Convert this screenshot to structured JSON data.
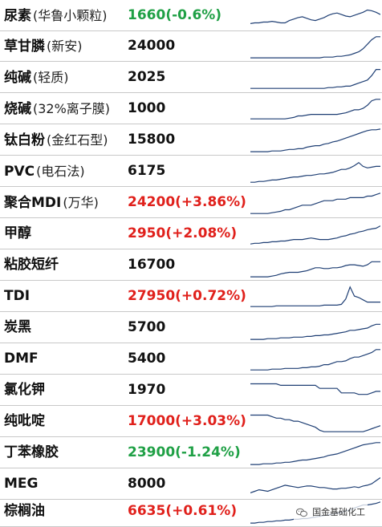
{
  "colors": {
    "up": "#e0201b",
    "down": "#1fa045",
    "neutral": "#111111",
    "spark": "#1f3f74"
  },
  "watermark": {
    "icon": "wechat-icon",
    "text": "国金基础化工"
  },
  "rows": [
    {
      "name": "尿素",
      "sub": "(华鲁小颗粒)",
      "price": "1660",
      "change": "(-0.6%)",
      "trend": "down",
      "spark": [
        7,
        8,
        8,
        9,
        9,
        10,
        9,
        8,
        8,
        11,
        13,
        15,
        16,
        14,
        12,
        11,
        13,
        15,
        18,
        20,
        21,
        19,
        17,
        16,
        18,
        20,
        22,
        25,
        24,
        22,
        19
      ]
    },
    {
      "name": "草甘膦",
      "sub": "(新安)",
      "price": "24000",
      "change": "",
      "trend": "flat",
      "spark": [
        2,
        2,
        2,
        2,
        2,
        2,
        2,
        2,
        2,
        2,
        2,
        2,
        2,
        2,
        2,
        2,
        2,
        3,
        3,
        3,
        4,
        4,
        5,
        6,
        8,
        10,
        14,
        20,
        26,
        30,
        30
      ]
    },
    {
      "name": "纯碱",
      "sub": "(轻质)",
      "price": "2025",
      "change": "",
      "trend": "flat",
      "spark": [
        3,
        3,
        3,
        3,
        3,
        3,
        3,
        3,
        3,
        3,
        3,
        3,
        3,
        3,
        3,
        3,
        3,
        3,
        4,
        4,
        5,
        5,
        6,
        6,
        8,
        10,
        12,
        14,
        20,
        28,
        28
      ]
    },
    {
      "name": "烧碱",
      "sub": "(32%离子膜)",
      "price": "1000",
      "change": "",
      "trend": "flat",
      "spark": [
        4,
        4,
        4,
        4,
        4,
        4,
        4,
        4,
        4,
        5,
        6,
        8,
        8,
        9,
        10,
        10,
        10,
        10,
        10,
        10,
        10,
        11,
        12,
        14,
        16,
        16,
        18,
        22,
        28,
        30,
        30
      ]
    },
    {
      "name": "钛白粉",
      "sub": "(金红石型)",
      "price": "15800",
      "change": "",
      "trend": "flat",
      "spark": [
        2,
        2,
        2,
        2,
        2,
        3,
        3,
        3,
        4,
        5,
        5,
        6,
        6,
        8,
        9,
        10,
        10,
        12,
        13,
        15,
        16,
        18,
        20,
        22,
        24,
        26,
        28,
        30,
        31,
        31,
        32
      ]
    },
    {
      "name": "PVC",
      "sub": "(电石法)",
      "price": "6175",
      "change": "",
      "trend": "flat",
      "spark": [
        3,
        3,
        4,
        4,
        5,
        6,
        6,
        7,
        8,
        9,
        10,
        10,
        11,
        12,
        12,
        13,
        14,
        14,
        15,
        16,
        18,
        20,
        20,
        22,
        25,
        29,
        24,
        22,
        23,
        24,
        24
      ]
    },
    {
      "name": "聚合MDI",
      "sub": "(万华)",
      "price": "24200",
      "change": "(+3.86%)",
      "trend": "up",
      "spark": [
        3,
        3,
        3,
        3,
        3,
        4,
        5,
        6,
        8,
        8,
        10,
        12,
        14,
        14,
        14,
        16,
        18,
        20,
        20,
        20,
        22,
        22,
        22,
        24,
        24,
        24,
        24,
        26,
        26,
        28,
        30
      ]
    },
    {
      "name": "甲醇",
      "sub": "",
      "price": "2950",
      "change": "(+2.08%)",
      "trend": "up",
      "spark": [
        4,
        5,
        5,
        6,
        6,
        7,
        7,
        8,
        8,
        9,
        10,
        10,
        10,
        11,
        12,
        11,
        10,
        10,
        10,
        11,
        12,
        14,
        15,
        17,
        18,
        20,
        21,
        23,
        24,
        25,
        28
      ]
    },
    {
      "name": "粘胶短纤",
      "sub": "",
      "price": "16700",
      "change": "",
      "trend": "flat",
      "spark": [
        2,
        2,
        2,
        2,
        2,
        3,
        4,
        6,
        7,
        8,
        8,
        8,
        9,
        10,
        12,
        14,
        14,
        13,
        13,
        14,
        14,
        15,
        17,
        18,
        18,
        17,
        16,
        18,
        22,
        22,
        22
      ]
    },
    {
      "name": "TDI",
      "sub": "",
      "price": "27950",
      "change": "(+0.72%)",
      "trend": "up",
      "spark": [
        4,
        4,
        4,
        4,
        4,
        4,
        5,
        5,
        5,
        5,
        5,
        5,
        5,
        5,
        5,
        5,
        5,
        6,
        6,
        6,
        6,
        7,
        14,
        30,
        18,
        16,
        13,
        10,
        10,
        10,
        10
      ]
    },
    {
      "name": "炭黑",
      "sub": "",
      "price": "5700",
      "change": "",
      "trend": "flat",
      "spark": [
        2,
        2,
        2,
        2,
        3,
        3,
        3,
        4,
        4,
        4,
        5,
        5,
        5,
        6,
        6,
        7,
        7,
        8,
        8,
        9,
        10,
        11,
        12,
        14,
        14,
        15,
        16,
        17,
        20,
        22,
        22
      ]
    },
    {
      "name": "DMF",
      "sub": "",
      "price": "5400",
      "change": "",
      "trend": "flat",
      "spark": [
        3,
        3,
        3,
        3,
        3,
        4,
        4,
        4,
        5,
        5,
        5,
        5,
        6,
        6,
        7,
        7,
        8,
        10,
        10,
        12,
        14,
        14,
        15,
        18,
        20,
        20,
        22,
        24,
        26,
        30,
        30
      ]
    },
    {
      "name": "氯化钾",
      "sub": "",
      "price": "1970",
      "change": "",
      "trend": "flat",
      "spark": [
        26,
        26,
        26,
        26,
        26,
        26,
        26,
        24,
        24,
        24,
        24,
        24,
        24,
        24,
        24,
        24,
        20,
        20,
        20,
        20,
        20,
        14,
        14,
        14,
        14,
        12,
        12,
        12,
        14,
        16,
        16
      ]
    },
    {
      "name": "纯吡啶",
      "sub": "",
      "price": "17000",
      "change": "(+3.03%)",
      "trend": "up",
      "spark": [
        26,
        26,
        26,
        26,
        26,
        24,
        22,
        22,
        20,
        20,
        18,
        18,
        16,
        14,
        12,
        10,
        6,
        4,
        4,
        4,
        4,
        4,
        4,
        4,
        4,
        4,
        4,
        6,
        8,
        10,
        12
      ]
    },
    {
      "name": "丁苯橡胶",
      "sub": "",
      "price": "23900",
      "change": "(-1.24%)",
      "trend": "down",
      "spark": [
        2,
        2,
        2,
        3,
        3,
        3,
        4,
        4,
        5,
        5,
        6,
        7,
        8,
        8,
        9,
        10,
        11,
        12,
        14,
        15,
        16,
        18,
        20,
        22,
        24,
        26,
        28,
        29,
        30,
        31,
        31
      ]
    },
    {
      "name": "MEG",
      "sub": "",
      "price": "8000",
      "change": "",
      "trend": "flat",
      "spark": [
        6,
        8,
        10,
        9,
        8,
        10,
        12,
        14,
        16,
        15,
        14,
        13,
        14,
        15,
        15,
        14,
        13,
        13,
        12,
        11,
        11,
        12,
        12,
        13,
        14,
        13,
        15,
        16,
        18,
        22,
        26
      ]
    },
    {
      "name": "棕榈油",
      "sub": "",
      "price": "6635",
      "change": "(+0.61%)",
      "trend": "up",
      "spark": [
        2,
        2,
        3,
        3,
        4,
        4,
        5,
        5,
        6,
        6,
        7,
        7,
        8,
        8,
        9,
        10,
        11,
        12,
        13,
        14,
        15,
        16,
        18,
        20,
        22,
        24,
        26,
        26,
        27,
        28,
        30
      ]
    }
  ]
}
